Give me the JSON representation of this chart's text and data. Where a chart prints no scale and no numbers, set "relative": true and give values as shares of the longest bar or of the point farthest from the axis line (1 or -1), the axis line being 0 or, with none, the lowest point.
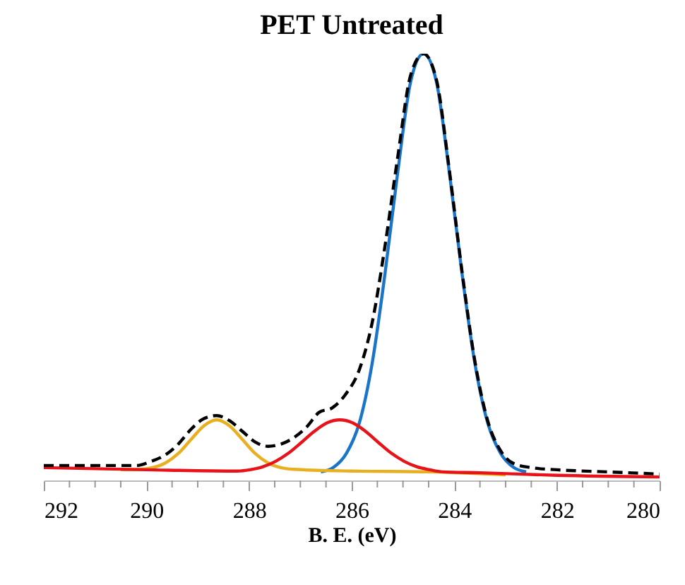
{
  "chart_data": {
    "type": "line",
    "title": "PET Untreated",
    "xlabel": "B. E. (eV)",
    "relative": true,
    "xlim": [
      292,
      280
    ],
    "xticks": [
      292,
      {
        "value": 291.5,
        "label": null
      },
      {
        "value": 291,
        "label": null
      },
      {
        "value": 290.5,
        "label": null
      },
      290,
      {
        "value": 289.5,
        "label": null
      },
      {
        "value": 289,
        "label": null
      },
      {
        "value": 288.5,
        "label": null
      },
      288,
      {
        "value": 287.5,
        "label": null
      },
      {
        "value": 287,
        "label": null
      },
      {
        "value": 286.5,
        "label": null
      },
      286,
      {
        "value": 285.5,
        "label": null
      },
      {
        "value": 285,
        "label": null
      },
      {
        "value": 284.5,
        "label": null
      },
      284,
      {
        "value": 283.5,
        "label": null
      },
      {
        "value": 283,
        "label": null
      },
      {
        "value": 282.5,
        "label": null
      },
      282,
      {
        "value": 281.5,
        "label": null
      },
      {
        "value": 281,
        "label": null
      },
      {
        "value": 280.5,
        "label": null
      },
      280
    ],
    "grid": false,
    "series": [
      {
        "color": "#1a75c8",
        "line_style": "solid",
        "x": [
          286.6,
          286.35,
          286.1,
          285.85,
          285.6,
          285.35,
          285.1,
          284.85,
          284.6,
          284.35,
          284.1,
          283.85,
          283.6,
          283.35,
          283.1,
          282.85,
          282.6
        ],
        "values": [
          0.02,
          0.031,
          0.064,
          0.135,
          0.275,
          0.485,
          0.725,
          0.935,
          1,
          0.935,
          0.725,
          0.485,
          0.275,
          0.135,
          0.064,
          0.031,
          0.02
        ]
      },
      {
        "color": "#e8b020",
        "line_style": "solid",
        "x": [
          290.5,
          290.13,
          289.88,
          289.63,
          289.38,
          289.13,
          288.88,
          288.63,
          288.38,
          288.13,
          287.88,
          287.63,
          287.38,
          287.13,
          286,
          284.5,
          283
        ],
        "values": [
          0.025,
          0.026,
          0.03,
          0.041,
          0.063,
          0.096,
          0.128,
          0.142,
          0.128,
          0.096,
          0.063,
          0.041,
          0.03,
          0.026,
          0.022,
          0.02,
          0.013
        ]
      },
      {
        "color": "#e8131a",
        "line_style": "solid",
        "x": [
          292,
          290,
          288.23,
          287.98,
          287.73,
          287.48,
          287.23,
          286.98,
          286.73,
          286.48,
          286.23,
          285.98,
          285.73,
          285.48,
          285.23,
          284.98,
          284.73,
          284.48,
          284.23,
          283.5,
          282,
          280
        ],
        "values": [
          0.03,
          0.025,
          0.022,
          0.025,
          0.032,
          0.045,
          0.064,
          0.089,
          0.115,
          0.135,
          0.142,
          0.135,
          0.115,
          0.089,
          0.064,
          0.045,
          0.032,
          0.025,
          0.02,
          0.018,
          0.012,
          0.008
        ]
      },
      {
        "color": "#000000",
        "line_style": "dashed",
        "x": [
          292,
          291,
          290.2,
          289.9,
          289.63,
          289.38,
          289.13,
          288.88,
          288.63,
          288.38,
          288.13,
          287.88,
          287.63,
          287.38,
          287.13,
          286.88,
          286.63,
          286.38,
          286.13,
          285.85,
          285.6,
          285.35,
          285.1,
          284.85,
          284.6,
          284.35,
          284.1,
          283.85,
          283.6,
          283.35,
          283.1,
          282.85,
          282.5,
          282,
          281,
          280
        ],
        "values": [
          0.035,
          0.035,
          0.035,
          0.045,
          0.06,
          0.085,
          0.12,
          0.145,
          0.152,
          0.14,
          0.115,
          0.09,
          0.08,
          0.085,
          0.1,
          0.125,
          0.16,
          0.17,
          0.2,
          0.26,
          0.37,
          0.55,
          0.76,
          0.95,
          1,
          0.94,
          0.73,
          0.49,
          0.28,
          0.14,
          0.07,
          0.04,
          0.03,
          0.025,
          0.02,
          0.015
        ]
      }
    ]
  }
}
